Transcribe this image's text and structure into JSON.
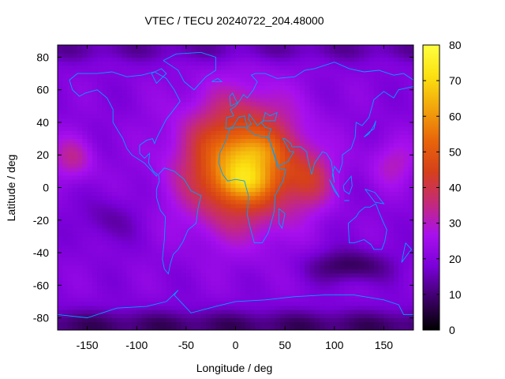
{
  "chart_data": {
    "type": "heatmap",
    "title": "VTEC / TECU 20240722_204.48000",
    "xlabel": "Longitude / deg",
    "ylabel": "Latitude / deg",
    "xlim": [
      -180,
      180
    ],
    "ylim": [
      -87.5,
      87.5
    ],
    "xticks": [
      -150,
      -100,
      -50,
      0,
      50,
      100,
      150
    ],
    "yticks": [
      -80,
      -60,
      -40,
      -20,
      0,
      20,
      40,
      60,
      80
    ],
    "colorbar": {
      "min": 0,
      "max": 80,
      "ticks": [
        0,
        10,
        20,
        30,
        40,
        50,
        60,
        70,
        80
      ],
      "palette": [
        "#000000",
        "#3d0068",
        "#7a00d8",
        "#a810ee",
        "#c42a7a",
        "#d6401a",
        "#e8660a",
        "#f2a40c",
        "#fbe010",
        "#ffff40"
      ]
    },
    "coastline_color": "#00a0ff",
    "grid_resolution": {
      "lon_step_deg": 5,
      "lat_step_deg": 2.5
    },
    "features": [
      {
        "name": "equatorial-anomaly-peak",
        "lon": 10,
        "lat": 5,
        "value": 76
      },
      {
        "name": "main-daytime-bulge",
        "lon": 5,
        "lat": 15,
        "value": 62
      },
      {
        "name": "north-africa-crest",
        "lon": 20,
        "lat": 22,
        "value": 70
      },
      {
        "name": "pacific-secondary",
        "lon": -165,
        "lat": 18,
        "value": 33
      },
      {
        "name": "southern-ocean-trough",
        "lon": 115,
        "lat": -48,
        "value": 7
      },
      {
        "name": "south-pole-low",
        "lon": 0,
        "lat": -85,
        "value": 9
      },
      {
        "name": "background-mean",
        "value": 20
      }
    ]
  }
}
